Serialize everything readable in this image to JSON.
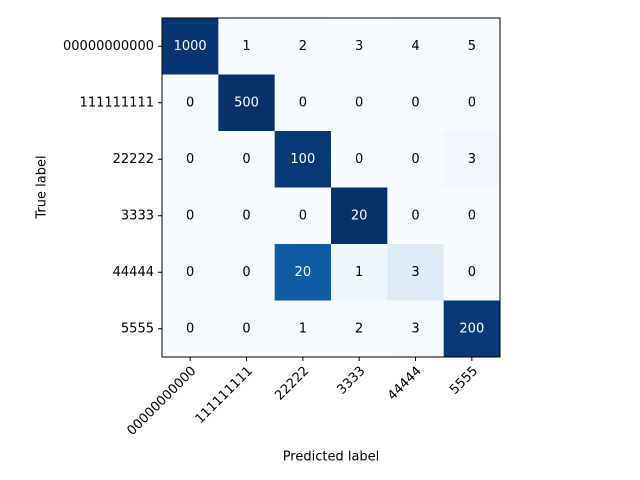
{
  "chart_data": {
    "type": "heatmap",
    "xlabel": "Predicted label",
    "ylabel": "True label",
    "x_categories": [
      "00000000000",
      "111111111",
      "22222",
      "3333",
      "44444",
      "5555"
    ],
    "y_categories": [
      "00000000000",
      "111111111",
      "22222",
      "3333",
      "44444",
      "5555"
    ],
    "values": [
      [
        1000,
        1,
        2,
        3,
        4,
        5
      ],
      [
        0,
        500,
        0,
        0,
        0,
        0
      ],
      [
        0,
        0,
        100,
        0,
        0,
        3
      ],
      [
        0,
        0,
        0,
        20,
        0,
        0
      ],
      [
        0,
        0,
        20,
        1,
        3,
        0
      ],
      [
        0,
        0,
        1,
        2,
        3,
        200
      ]
    ],
    "colormap": "Blues",
    "normalize": "row"
  }
}
